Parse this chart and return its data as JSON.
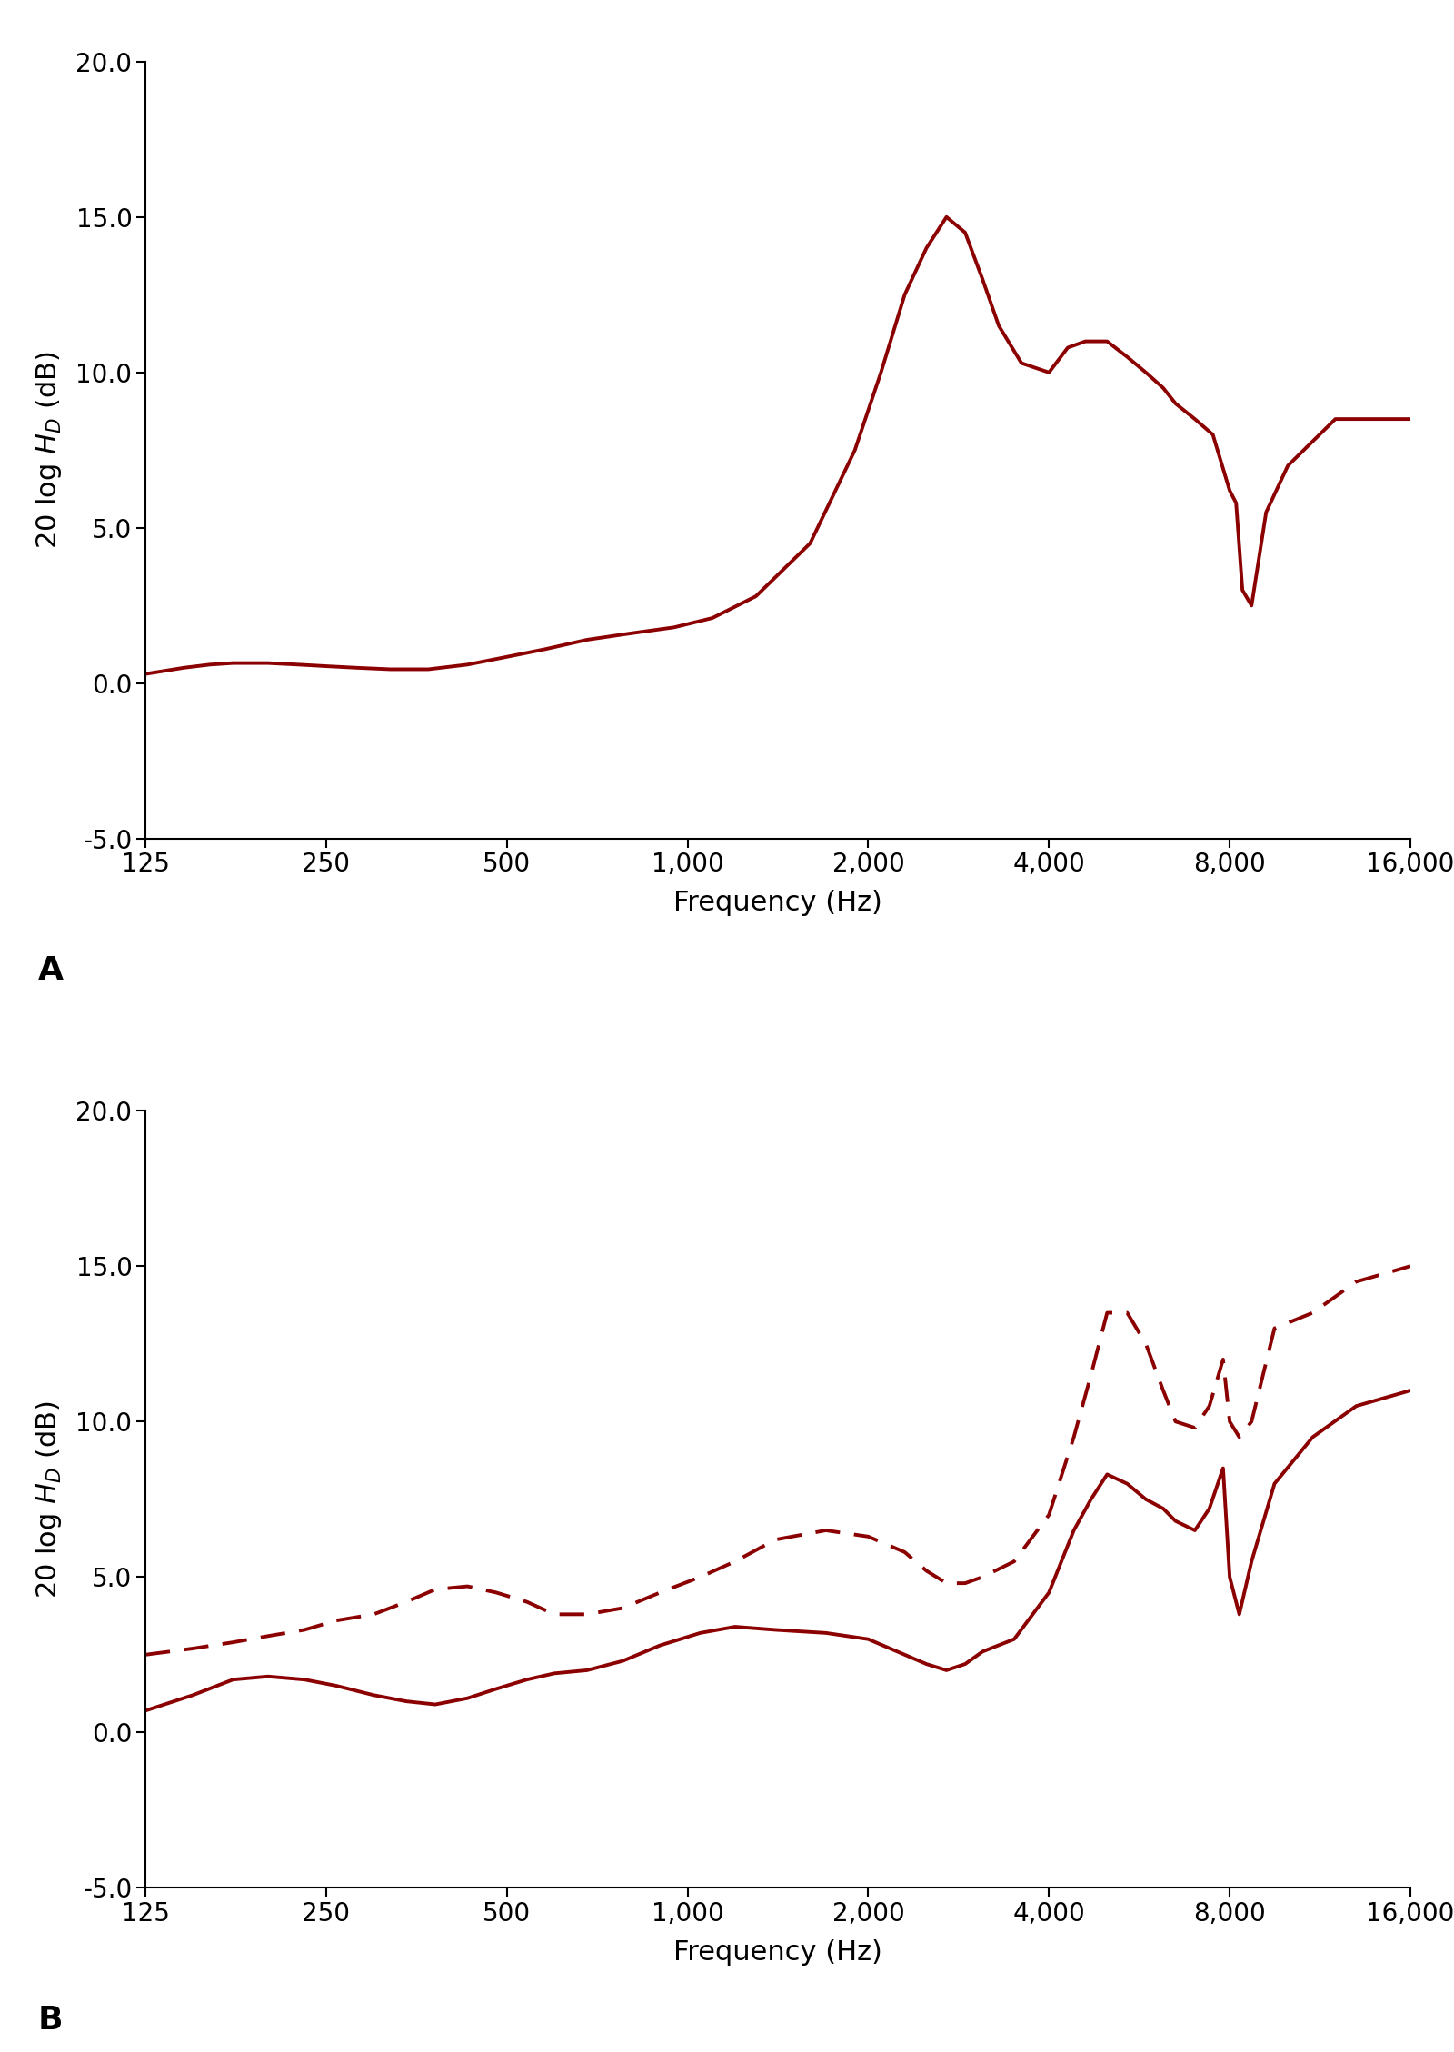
{
  "color": "#8B0000",
  "line_width": 2.8,
  "ylim": [
    -5.0,
    20.0
  ],
  "yticks": [
    -5.0,
    0.0,
    5.0,
    10.0,
    15.0,
    20.0
  ],
  "xticks": [
    125,
    250,
    500,
    1000,
    2000,
    4000,
    8000,
    16000
  ],
  "xticklabels": [
    "125",
    "250",
    "500",
    "1,000",
    "2,000",
    "4,000",
    "8,000",
    "16,000"
  ],
  "xlabel": "Frequency (Hz)",
  "panel_A_label": "A",
  "panel_B_label": "B",
  "panel_A_freq": [
    125,
    145,
    160,
    175,
    200,
    225,
    250,
    280,
    320,
    370,
    430,
    500,
    580,
    680,
    800,
    950,
    1100,
    1300,
    1600,
    1900,
    2100,
    2300,
    2500,
    2700,
    2900,
    3100,
    3300,
    3600,
    4000,
    4300,
    4600,
    5000,
    5400,
    5800,
    6200,
    6500,
    7000,
    7500,
    8000,
    8200,
    8400,
    8700,
    9200,
    10000,
    12000,
    14000,
    16000
  ],
  "panel_A_vals": [
    0.3,
    0.5,
    0.6,
    0.65,
    0.65,
    0.6,
    0.55,
    0.5,
    0.45,
    0.45,
    0.6,
    0.85,
    1.1,
    1.4,
    1.6,
    1.8,
    2.1,
    2.8,
    4.5,
    7.5,
    10.0,
    12.5,
    14.0,
    15.0,
    14.5,
    13.0,
    11.5,
    10.3,
    10.0,
    10.8,
    11.0,
    11.0,
    10.5,
    10.0,
    9.5,
    9.0,
    8.5,
    8.0,
    6.2,
    5.8,
    3.0,
    2.5,
    5.5,
    7.0,
    8.5,
    8.5,
    8.5
  ],
  "panel_B_solid_freq": [
    125,
    150,
    175,
    200,
    230,
    260,
    300,
    340,
    380,
    430,
    480,
    540,
    600,
    680,
    780,
    900,
    1050,
    1200,
    1400,
    1700,
    2000,
    2300,
    2500,
    2700,
    2900,
    3100,
    3500,
    4000,
    4400,
    4700,
    5000,
    5400,
    5800,
    6200,
    6500,
    7000,
    7400,
    7800,
    8000,
    8300,
    8700,
    9500,
    11000,
    13000,
    16000
  ],
  "panel_B_solid_vals": [
    0.7,
    1.2,
    1.7,
    1.8,
    1.7,
    1.5,
    1.2,
    1.0,
    0.9,
    1.1,
    1.4,
    1.7,
    1.9,
    2.0,
    2.3,
    2.8,
    3.2,
    3.4,
    3.3,
    3.2,
    3.0,
    2.5,
    2.2,
    2.0,
    2.2,
    2.6,
    3.0,
    4.5,
    6.5,
    7.5,
    8.3,
    8.0,
    7.5,
    7.2,
    6.8,
    6.5,
    7.2,
    8.5,
    5.0,
    3.8,
    5.5,
    8.0,
    9.5,
    10.5,
    11.0
  ],
  "panel_B_dashed_freq": [
    125,
    150,
    175,
    200,
    230,
    260,
    300,
    340,
    380,
    430,
    480,
    540,
    600,
    680,
    780,
    900,
    1050,
    1200,
    1400,
    1700,
    2000,
    2300,
    2500,
    2700,
    2900,
    3100,
    3500,
    4000,
    4400,
    4700,
    5000,
    5400,
    5800,
    6200,
    6500,
    7000,
    7400,
    7800,
    8000,
    8300,
    8700,
    9500,
    11000,
    13000,
    16000
  ],
  "panel_B_dashed_vals": [
    2.5,
    2.7,
    2.9,
    3.1,
    3.3,
    3.6,
    3.8,
    4.2,
    4.6,
    4.7,
    4.5,
    4.2,
    3.8,
    3.8,
    4.0,
    4.5,
    5.0,
    5.5,
    6.2,
    6.5,
    6.3,
    5.8,
    5.2,
    4.8,
    4.8,
    5.0,
    5.5,
    7.0,
    9.5,
    11.5,
    13.5,
    13.5,
    12.5,
    11.0,
    10.0,
    9.8,
    10.5,
    12.0,
    10.0,
    9.5,
    10.0,
    13.0,
    13.5,
    14.5,
    15.0
  ]
}
